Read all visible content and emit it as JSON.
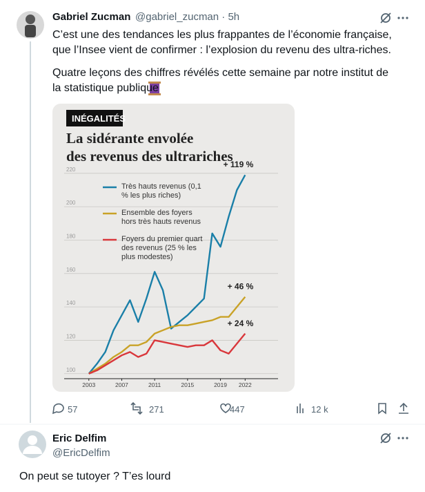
{
  "tweet": {
    "author": "Gabriel Zucman",
    "meta": "@gabriel_zucman · 5h",
    "paragraphs": [
      "C’est une des tendances les plus frappantes de l’économie française, que l’Insee vient de confirmer : l’explosion du revenu des ultra-riches.",
      "Quatre leçons des chiffres révélés cette semaine par notre institut de la statistique publique"
    ],
    "stats": [
      "57",
      "271",
      "447",
      "12 k"
    ]
  },
  "chart_data": {
    "type": "line",
    "tag": "INÉGALITÉS",
    "title_lines": [
      "La sidérante envolée",
      "des revenus des ultrariches"
    ],
    "x": [
      2003,
      2004,
      2005,
      2006,
      2007,
      2008,
      2009,
      2010,
      2011,
      2012,
      2013,
      2014,
      2015,
      2016,
      2017,
      2018,
      2019,
      2020,
      2021,
      2022
    ],
    "series": [
      {
        "name": "Très hauts revenus (0,1 % les plus riches)",
        "color": "#1a7fa8",
        "values": [
          100,
          106,
          113,
          126,
          135,
          144,
          131,
          145,
          161,
          150,
          127,
          131,
          135,
          140,
          145,
          184,
          176,
          194,
          210,
          219
        ]
      },
      {
        "name": "Ensemble des foyers hors très hauts revenus",
        "color": "#c9a227",
        "values": [
          100,
          103,
          106,
          110,
          113,
          117,
          117,
          119,
          124,
          126,
          128,
          129,
          129,
          130,
          131,
          132,
          134,
          134,
          140,
          146
        ]
      },
      {
        "name": "Foyers du premier quart des revenus (25 % les plus modestes)",
        "color": "#d9373b",
        "values": [
          100,
          102,
          105,
          108,
          111,
          113,
          110,
          112,
          120,
          119,
          118,
          117,
          116,
          117,
          117,
          120,
          114,
          112,
          118,
          124
        ]
      }
    ],
    "annotations": [
      "+ 119 %",
      "+ 46 %",
      "+ 24 %"
    ],
    "xlim": [
      2000,
      2026
    ],
    "xticks": [
      2003,
      2007,
      2011,
      2015,
      2019,
      2022
    ],
    "ylim": [
      97,
      222
    ],
    "yticks": [
      100,
      120,
      140,
      160,
      180,
      200,
      220
    ],
    "grid": true
  },
  "reply": {
    "author": "Eric Delfim",
    "handle": "@EricDelfim",
    "text": "On peut se tutoyer ? T’es lourd"
  }
}
